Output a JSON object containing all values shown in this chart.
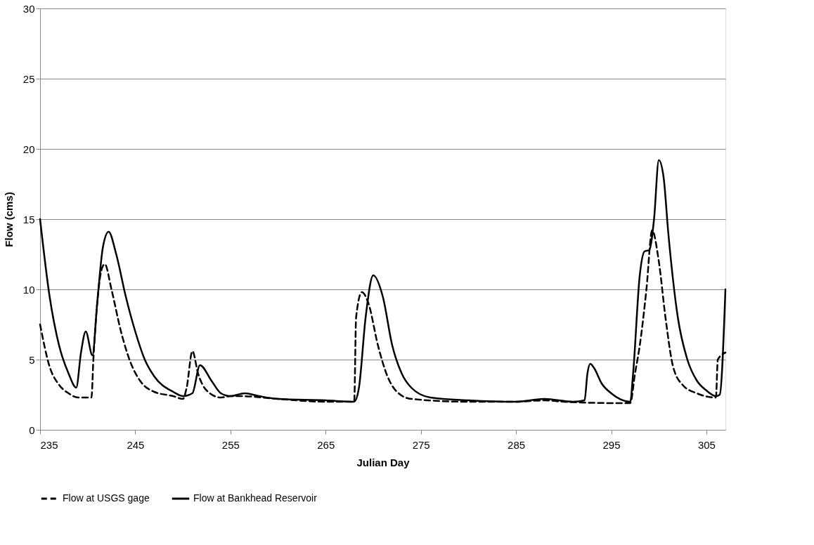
{
  "chart_data": {
    "type": "line",
    "xlabel": "Julian Day",
    "ylabel": "Flow (cms)",
    "xlim": [
      235,
      307
    ],
    "xticks": [
      235,
      245,
      255,
      265,
      275,
      285,
      295,
      305
    ],
    "ylim": [
      0,
      30
    ],
    "yticks": [
      0,
      5,
      10,
      15,
      20,
      25,
      30
    ],
    "grid": "y",
    "legend": "bottom",
    "series": [
      {
        "name": "Flow at USGS gage",
        "color": "#000000",
        "line_style": "dashed",
        "x": [
          235,
          236,
          237,
          238,
          239,
          240.4,
          240.6,
          241,
          241.5,
          241.8,
          242.5,
          243.5,
          244.5,
          245.5,
          247,
          249,
          250,
          250.4,
          251,
          251.6,
          252.5,
          254,
          255,
          256,
          260,
          265,
          268,
          268.2,
          268.8,
          269.5,
          270.5,
          271.5,
          272.5,
          274,
          280,
          285,
          288,
          290,
          296,
          297,
          297.5,
          298,
          298.7,
          299.3,
          300,
          300.7,
          301.5,
          302.5,
          304,
          306,
          306.2,
          307
        ],
        "values": [
          7.5,
          4.5,
          3.2,
          2.6,
          2.3,
          2.3,
          5,
          9,
          11.5,
          11.8,
          10,
          7,
          4.8,
          3.5,
          2.7,
          2.4,
          2.2,
          3,
          5.6,
          4,
          2.8,
          2.3,
          2.4,
          2.4,
          2.2,
          2.0,
          2.0,
          8,
          9.8,
          9,
          6,
          3.8,
          2.7,
          2.2,
          2.0,
          2.0,
          2.1,
          2.0,
          1.9,
          1.9,
          4,
          6,
          10,
          14.2,
          12,
          8,
          4.5,
          3.2,
          2.6,
          2.3,
          5,
          5.5
        ]
      },
      {
        "name": "Flow at Bankhead Reservoir",
        "color": "#000000",
        "line_style": "solid",
        "x": [
          235,
          236,
          237,
          238,
          238.8,
          239.3,
          239.8,
          240.5,
          241,
          241.6,
          242.2,
          243,
          244,
          245,
          246,
          247,
          249,
          250,
          251,
          251.8,
          253,
          254,
          255,
          256.5,
          258,
          260,
          265,
          268,
          268.5,
          269.2,
          270,
          271,
          272,
          273,
          274,
          276,
          280,
          285,
          288,
          291,
          292.2,
          292.5,
          292.8,
          293.2,
          294,
          295,
          297,
          297.3,
          298,
          298.5,
          299,
          299.5,
          300,
          300.5,
          301,
          302,
          303,
          304,
          305,
          306,
          306.4,
          307
        ],
        "values": [
          15,
          9.5,
          6,
          4,
          3,
          5.5,
          7,
          5.3,
          9,
          13,
          14.1,
          12.5,
          9.5,
          7,
          5,
          3.8,
          2.7,
          2.4,
          2.6,
          4.6,
          3.5,
          2.6,
          2.4,
          2.6,
          2.4,
          2.2,
          2.1,
          2.0,
          3,
          8,
          11,
          9.5,
          6,
          4,
          3,
          2.3,
          2.1,
          2.0,
          2.2,
          2.0,
          2.1,
          4.0,
          4.7,
          4.4,
          3.3,
          2.6,
          2.0,
          4,
          11,
          12.7,
          12.8,
          15,
          19.2,
          18,
          14,
          8,
          5,
          3.5,
          2.8,
          2.4,
          2.5,
          10
        ]
      }
    ]
  }
}
